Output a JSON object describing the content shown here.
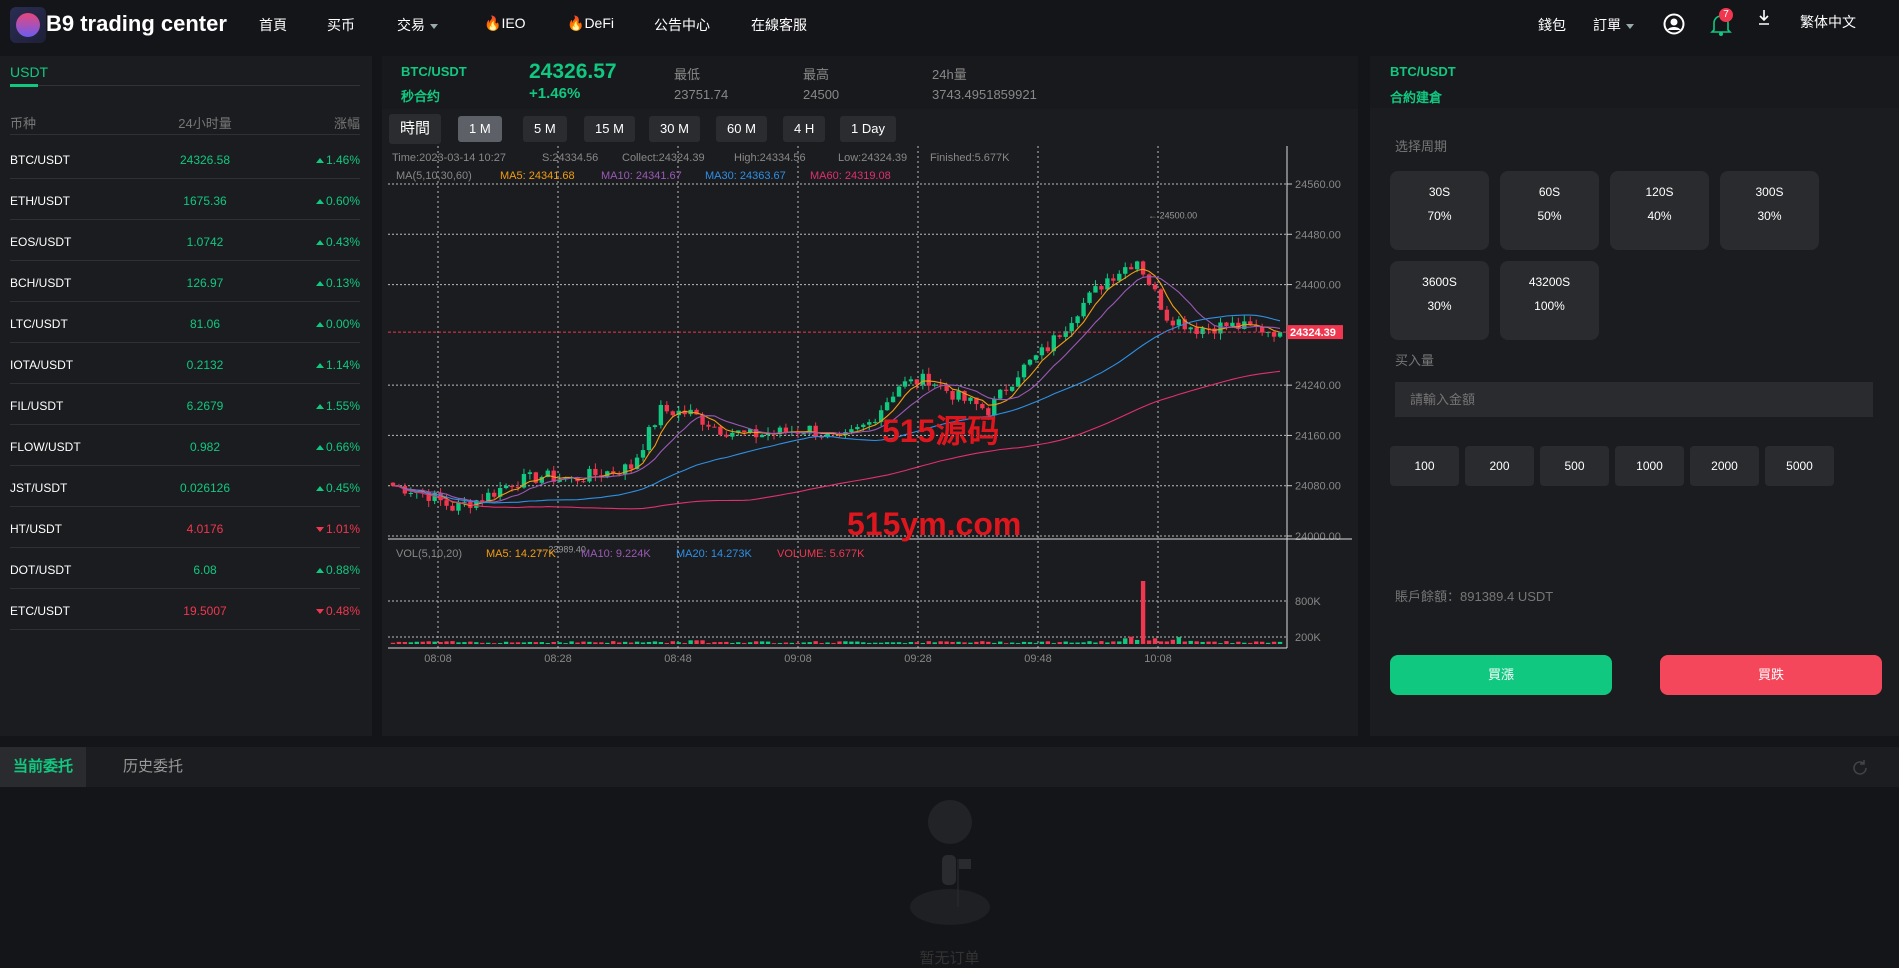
{
  "header": {
    "brand": "B9 trading center",
    "nav": [
      "首頁",
      "买币",
      "交易",
      "IEO",
      "DeFi",
      "公告中心",
      "在線客服"
    ],
    "wallet": "錢包",
    "orders": "訂單",
    "notif_count": "7",
    "language": "繁体中文"
  },
  "market": {
    "tab": "USDT",
    "headers": [
      "币种",
      "24小时量",
      "涨幅"
    ],
    "rows": [
      {
        "pair": "BTC/USDT",
        "price": "24326.58",
        "change": "1.46%",
        "dir": "up"
      },
      {
        "pair": "ETH/USDT",
        "price": "1675.36",
        "change": "0.60%",
        "dir": "up"
      },
      {
        "pair": "EOS/USDT",
        "price": "1.0742",
        "change": "0.43%",
        "dir": "up"
      },
      {
        "pair": "BCH/USDT",
        "price": "126.97",
        "change": "0.13%",
        "dir": "up"
      },
      {
        "pair": "LTC/USDT",
        "price": "81.06",
        "change": "0.00%",
        "dir": "up"
      },
      {
        "pair": "IOTA/USDT",
        "price": "0.2132",
        "change": "1.14%",
        "dir": "up"
      },
      {
        "pair": "FIL/USDT",
        "price": "6.2679",
        "change": "1.55%",
        "dir": "up"
      },
      {
        "pair": "FLOW/USDT",
        "price": "0.982",
        "change": "0.66%",
        "dir": "up"
      },
      {
        "pair": "JST/USDT",
        "price": "0.026126",
        "change": "0.45%",
        "dir": "up"
      },
      {
        "pair": "HT/USDT",
        "price": "4.0176",
        "change": "1.01%",
        "dir": "down"
      },
      {
        "pair": "DOT/USDT",
        "price": "6.08",
        "change": "0.88%",
        "dir": "up"
      },
      {
        "pair": "ETC/USDT",
        "price": "19.5007",
        "change": "0.48%",
        "dir": "down"
      }
    ]
  },
  "ticker": {
    "pair": "BTC/USDT",
    "type": "秒合约",
    "price": "24326.57",
    "change": "+1.46%",
    "low_label": "最低",
    "low": "23751.74",
    "high_label": "最高",
    "high": "24500",
    "vol_label": "24h量",
    "vol": "3743.4951859921"
  },
  "intervals": {
    "label": "時間",
    "options": [
      "1 M",
      "5 M",
      "15 M",
      "30 M",
      "60 M",
      "4 H",
      "1 Day"
    ],
    "active": "1 M"
  },
  "chart_data": {
    "type": "candlestick",
    "info": {
      "time": "Time:2023-03-14 10:27",
      "s": "S:24334.56",
      "collect": "Collect:24324.39",
      "high": "High:24334.56",
      "low": "Low:24324.39",
      "finished": "Finished:5.677K"
    },
    "ma_legend": {
      "label": "MA(5,10,30,60)",
      "ma5": "MA5: 24341.68",
      "ma10": "MA10: 24341.67",
      "ma30": "MA30: 24363.67",
      "ma60": "MA60: 24319.08"
    },
    "vol_legend": {
      "label": "VOL(5,10,20)",
      "ma5": "MA5: 14.277K",
      "ma10": "MA10: 9.224K",
      "ma20": "MA20: 14.273K",
      "volume": "VOLUME: 5.677K"
    },
    "y_ticks": [
      "24560.00",
      "24480.00",
      "24400.00",
      "24240.00",
      "24160.00",
      "24080.00",
      "24000.00"
    ],
    "ylim": [
      24000,
      24560
    ],
    "vol_ticks": [
      "800K",
      "200K"
    ],
    "x_ticks": [
      "08:08",
      "08:28",
      "08:48",
      "09:08",
      "09:28",
      "09:48",
      "10:08"
    ],
    "last_price": "24324.39",
    "max_label": "24500.00",
    "min_label": "23989.40",
    "closes_5min": [
      24080,
      24070,
      24045,
      24060,
      24085,
      24095,
      24090,
      24100,
      24110,
      24200,
      24195,
      24170,
      24160,
      24165,
      24170,
      24150,
      24180,
      24240,
      24250,
      24220,
      24200,
      24260,
      24300,
      24360,
      24410,
      24440,
      24350,
      24330,
      24335,
      24330,
      24324
    ],
    "colors": {
      "up": "#10c880",
      "down": "#f0374f",
      "ma5": "#f39c12",
      "ma10": "#9b59b6",
      "ma30": "#2e90e5",
      "ma60": "#e0306d"
    }
  },
  "watermark": {
    "line1": "515源码",
    "line2": "515ym.com"
  },
  "trade": {
    "pair": "BTC/USDT",
    "title": "合約建倉",
    "period_label": "选择周期",
    "periods": [
      {
        "t": "30S",
        "p": "70%"
      },
      {
        "t": "60S",
        "p": "50%"
      },
      {
        "t": "120S",
        "p": "40%"
      },
      {
        "t": "300S",
        "p": "30%"
      },
      {
        "t": "3600S",
        "p": "30%"
      },
      {
        "t": "43200S",
        "p": "100%"
      }
    ],
    "amount_label": "买入量",
    "amount_placeholder": "請輸入金額",
    "amounts": [
      "100",
      "200",
      "500",
      "1000",
      "2000",
      "5000"
    ],
    "balance": "賬戶餘額：891389.4 USDT",
    "buy_up": "買漲",
    "buy_down": "買跌"
  },
  "orders": {
    "tabs": [
      "当前委托",
      "历史委托"
    ],
    "empty": "暂无订单"
  }
}
